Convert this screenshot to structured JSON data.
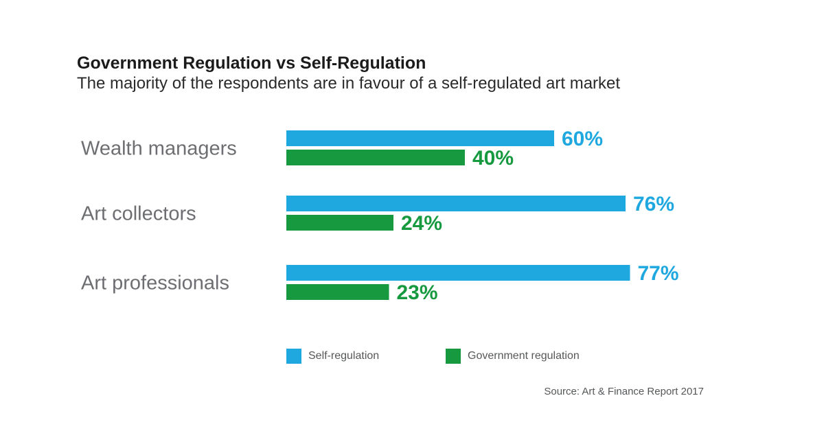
{
  "chart_data": {
    "type": "bar",
    "orientation": "horizontal",
    "title": "Government Regulation vs Self-Regulation",
    "subtitle": "The majority of the respondents are in favour of a self-regulated art market",
    "categories": [
      "Wealth managers",
      "Art collectors",
      "Art professionals"
    ],
    "series": [
      {
        "name": "Self-regulation",
        "color": "#1fa8e0",
        "values": [
          60,
          76,
          77
        ],
        "labels": [
          "60%",
          "76%",
          "77%"
        ]
      },
      {
        "name": "Government regulation",
        "color": "#16993f",
        "values": [
          40,
          24,
          23
        ],
        "labels": [
          "40%",
          "24%",
          "23%"
        ]
      }
    ],
    "xlim": [
      0,
      100
    ],
    "unit": "%",
    "grid": false,
    "legend_position": "bottom",
    "source": "Source: Art & Finance Report 2017"
  }
}
